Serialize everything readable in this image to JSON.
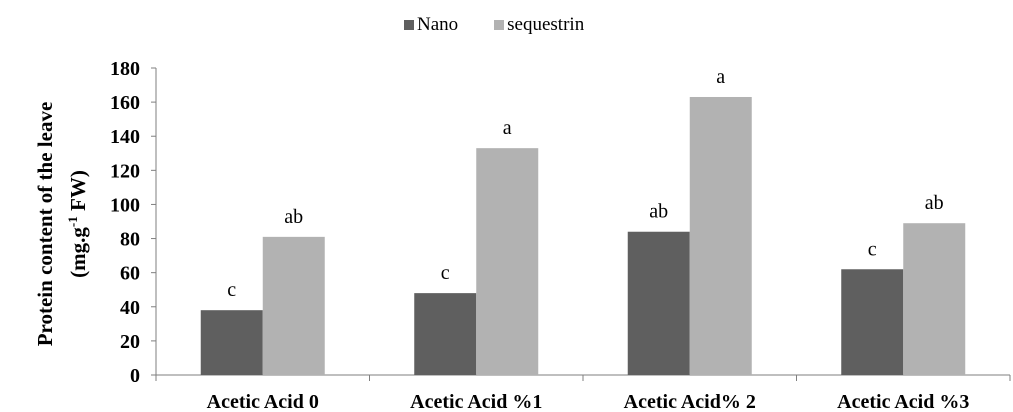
{
  "chart_data": {
    "type": "bar",
    "title": "",
    "xlabel": "",
    "ylabel_line1": "Protein content of the leave",
    "ylabel_line2_prefix": "(mg.g",
    "ylabel_line2_sup": "-1",
    "ylabel_line2_suffix": " FW)",
    "ylim": [
      0,
      180
    ],
    "yticks": [
      0,
      20,
      40,
      60,
      80,
      100,
      120,
      140,
      160,
      180
    ],
    "categories": [
      "Acetic Acid 0",
      "Acetic Acid %1",
      "Acetic Acid% 2",
      "Acetic Acid %3"
    ],
    "series": [
      {
        "name": "Nano",
        "color": "#5f5f5f",
        "values": [
          38,
          48,
          84,
          62
        ],
        "labels": [
          "c",
          "c",
          "ab",
          "c"
        ]
      },
      {
        "name": "sequestrin",
        "color": "#b2b2b2",
        "values": [
          81,
          133,
          163,
          89
        ],
        "labels": [
          "ab",
          "a",
          "a",
          "ab"
        ]
      }
    ],
    "legend_position": "top-center",
    "grid": false
  }
}
